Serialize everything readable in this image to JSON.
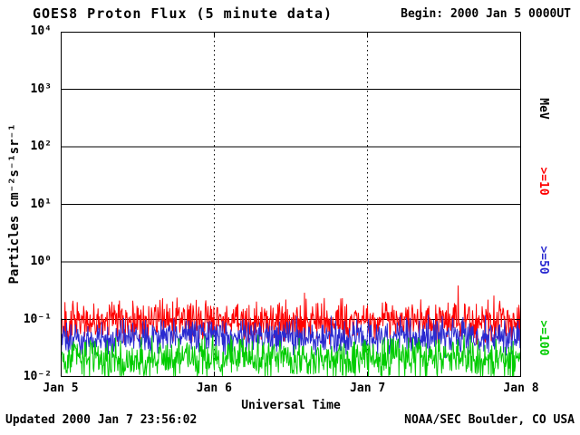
{
  "header": {
    "begin": "Begin: 2000 Jan 5 0000UT"
  },
  "footer": {
    "updated": "Updated 2000 Jan  7 23:56:02",
    "credit": "NOAA/SEC Boulder, CO USA"
  },
  "chart_data": {
    "type": "line",
    "title": "GOES8 Proton Flux (5 minute data)",
    "xlabel": "Universal Time",
    "ylabel": "Particles cm⁻²s⁻¹sr⁻¹",
    "right_axis_unit": "MeV",
    "y_scale": "log",
    "ylim": [
      0.01,
      10000
    ],
    "y_tick_labels": [
      "10⁴",
      "10³",
      "10²",
      "10¹",
      "10⁰",
      "10⁻¹",
      "10⁻²"
    ],
    "x_tick_labels": [
      "Jan 5",
      "Jan 6",
      "Jan 7",
      "Jan 8"
    ],
    "x_span_days": 3,
    "sample_interval_minutes": 5,
    "samples": 864,
    "grid": {
      "h_lines_at": [
        1000,
        100,
        10,
        1,
        0.1
      ],
      "v_dotted_at_ticks": [
        1,
        2
      ]
    },
    "series": [
      {
        "name": ">=10",
        "color": "#ff0000",
        "baseline_flux": 0.095,
        "typical_range": [
          0.05,
          0.3
        ],
        "peak": 0.6,
        "noise_decades": 0.3,
        "spike_prob": 0.05,
        "spike_decades": 0.55,
        "seed": 101
      },
      {
        "name": ">=50",
        "color": "#2a2ad0",
        "baseline_flux": 0.05,
        "typical_range": [
          0.03,
          0.12
        ],
        "peak": 0.15,
        "noise_decades": 0.27,
        "spike_prob": 0.03,
        "spike_decades": 0.3,
        "seed": 202
      },
      {
        "name": ">=100",
        "color": "#00cc00",
        "baseline_flux": 0.021,
        "typical_range": [
          0.01,
          0.06
        ],
        "peak": 0.08,
        "noise_decades": 0.3,
        "spike_prob": 0.03,
        "spike_decades": 0.25,
        "seed": 303
      }
    ]
  }
}
